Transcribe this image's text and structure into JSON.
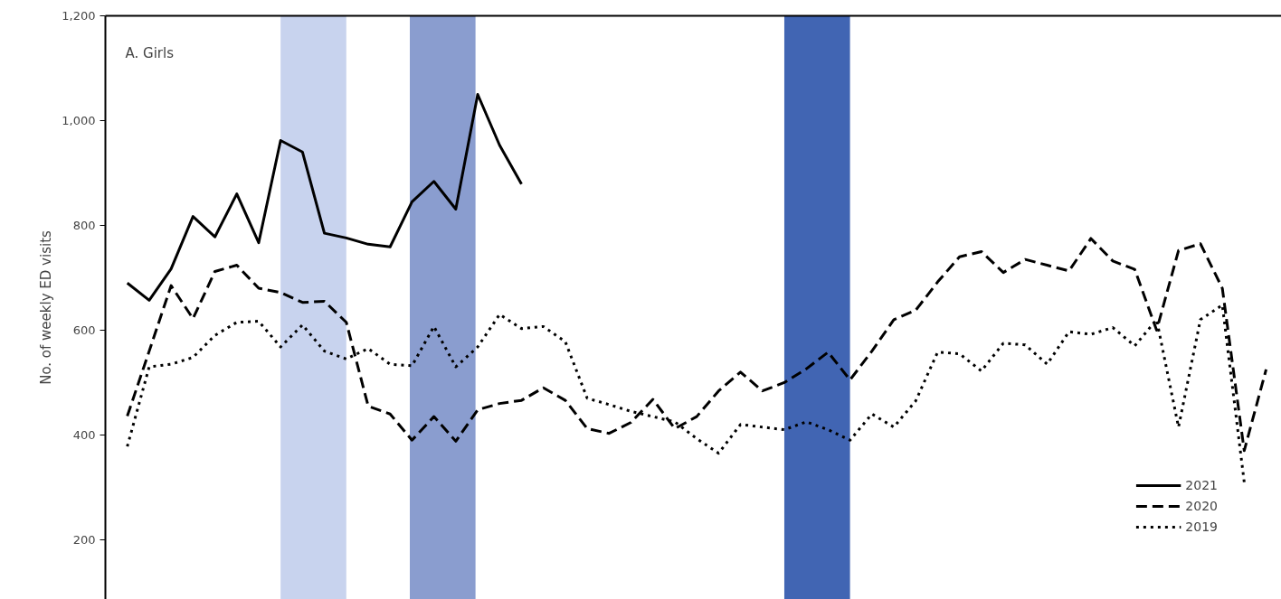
{
  "chart_data": {
    "type": "line",
    "ylabel": "No. of weekly ED visits",
    "annotations": [
      "A. Girls"
    ],
    "categories": [
      null,
      null,
      null,
      null,
      null,
      null,
      null,
      null,
      null,
      null,
      null,
      null,
      null,
      null,
      null,
      null,
      null,
      null,
      null,
      null,
      null,
      null,
      null,
      null,
      null,
      null,
      null,
      null,
      null,
      null,
      null,
      null,
      null,
      null,
      null,
      null,
      null,
      null,
      null,
      null,
      null,
      null,
      null,
      null,
      null,
      null,
      null,
      null,
      null,
      null,
      null,
      null,
      null
    ],
    "ylim": [
      86,
      1200
    ],
    "yticks": [
      {
        "value": 200,
        "label": "200"
      },
      {
        "value": 400,
        "label": "400"
      },
      {
        "value": 600,
        "label": "600"
      },
      {
        "value": 800,
        "label": "800"
      },
      {
        "value": 1000,
        "label": "1,000"
      },
      {
        "value": 1200,
        "label": "1,200"
      }
    ],
    "tick_labels": "y",
    "grid": false,
    "legend": "bottom right",
    "series": [
      {
        "name": "2021",
        "color": "#000000",
        "line_style": "solid",
        "values": [
          690,
          657,
          717,
          817,
          778,
          860,
          767,
          962,
          940,
          785,
          776,
          764,
          759,
          845,
          884,
          831,
          1050,
          953,
          879,
          null,
          null,
          null,
          null,
          null,
          null,
          null,
          null,
          null,
          null,
          null,
          null,
          null,
          null,
          null,
          null,
          null,
          null,
          null,
          null,
          null,
          null,
          null,
          null,
          null,
          null,
          null,
          null,
          null,
          null,
          null,
          null,
          null,
          null
        ]
      },
      {
        "name": "2020",
        "color": "#000000",
        "line_style": "dashed",
        "values": [
          436,
          560,
          685,
          622,
          712,
          724,
          680,
          672,
          653,
          655,
          615,
          455,
          440,
          390,
          435,
          388,
          448,
          460,
          466,
          490,
          466,
          412,
          403,
          424,
          468,
          412,
          435,
          484,
          520,
          484,
          500,
          526,
          558,
          505,
          560,
          620,
          638,
          692,
          740,
          750,
          710,
          735,
          724,
          713,
          775,
          732,
          716,
          600,
          752,
          765,
          680,
          370,
          525
        ]
      },
      {
        "name": "2019",
        "color": "#000000",
        "line_style": "dotted",
        "values": [
          378,
          530,
          535,
          548,
          590,
          615,
          617,
          568,
          610,
          560,
          545,
          565,
          535,
          532,
          607,
          530,
          568,
          630,
          603,
          607,
          578,
          470,
          458,
          445,
          435,
          425,
          393,
          365,
          420,
          415,
          410,
          425,
          410,
          390,
          440,
          415,
          465,
          558,
          555,
          522,
          575,
          572,
          535,
          597,
          592,
          605,
          570,
          620,
          415,
          620,
          648,
          310,
          null
        ]
      }
    ]
  }
}
